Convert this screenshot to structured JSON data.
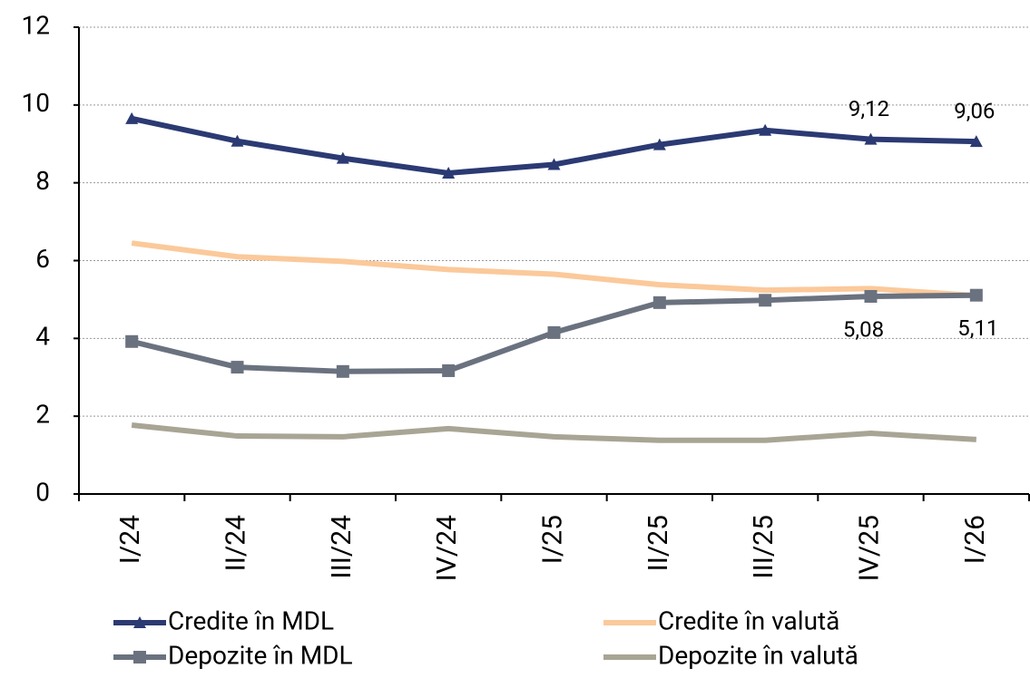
{
  "chart_data": {
    "type": "line",
    "categories": [
      "I/24",
      "II/24",
      "III/24",
      "IV/24",
      "I/25",
      "II/25",
      "III/25",
      "IV/25",
      "I/26"
    ],
    "series": [
      {
        "name": "Credite în MDL",
        "color": "#2b3a73",
        "marker": "triangle",
        "values": [
          9.65,
          9.07,
          8.63,
          8.25,
          8.47,
          8.98,
          9.35,
          9.12,
          9.06
        ],
        "value_labels": [
          null,
          null,
          null,
          null,
          null,
          null,
          null,
          "9,12",
          "9,06"
        ]
      },
      {
        "name": "Credite în valută",
        "color": "#fbc99a",
        "values": [
          6.45,
          6.1,
          5.98,
          5.77,
          5.65,
          5.38,
          5.24,
          5.28,
          5.1
        ]
      },
      {
        "name": "Depozite în MDL",
        "color": "#6b727f",
        "marker": "square",
        "values": [
          3.92,
          3.26,
          3.15,
          3.17,
          4.15,
          4.92,
          4.98,
          5.08,
          5.11
        ],
        "value_labels": [
          null,
          null,
          null,
          null,
          null,
          null,
          null,
          "5,08",
          "5,11"
        ]
      },
      {
        "name": "Depozite în valută",
        "color": "#a8a595",
        "values": [
          1.77,
          1.49,
          1.47,
          1.68,
          1.47,
          1.38,
          1.38,
          1.56,
          1.4
        ]
      }
    ],
    "ylim": [
      0,
      12
    ],
    "yticks": [
      0,
      2,
      4,
      6,
      8,
      10,
      12
    ],
    "grid": true
  }
}
